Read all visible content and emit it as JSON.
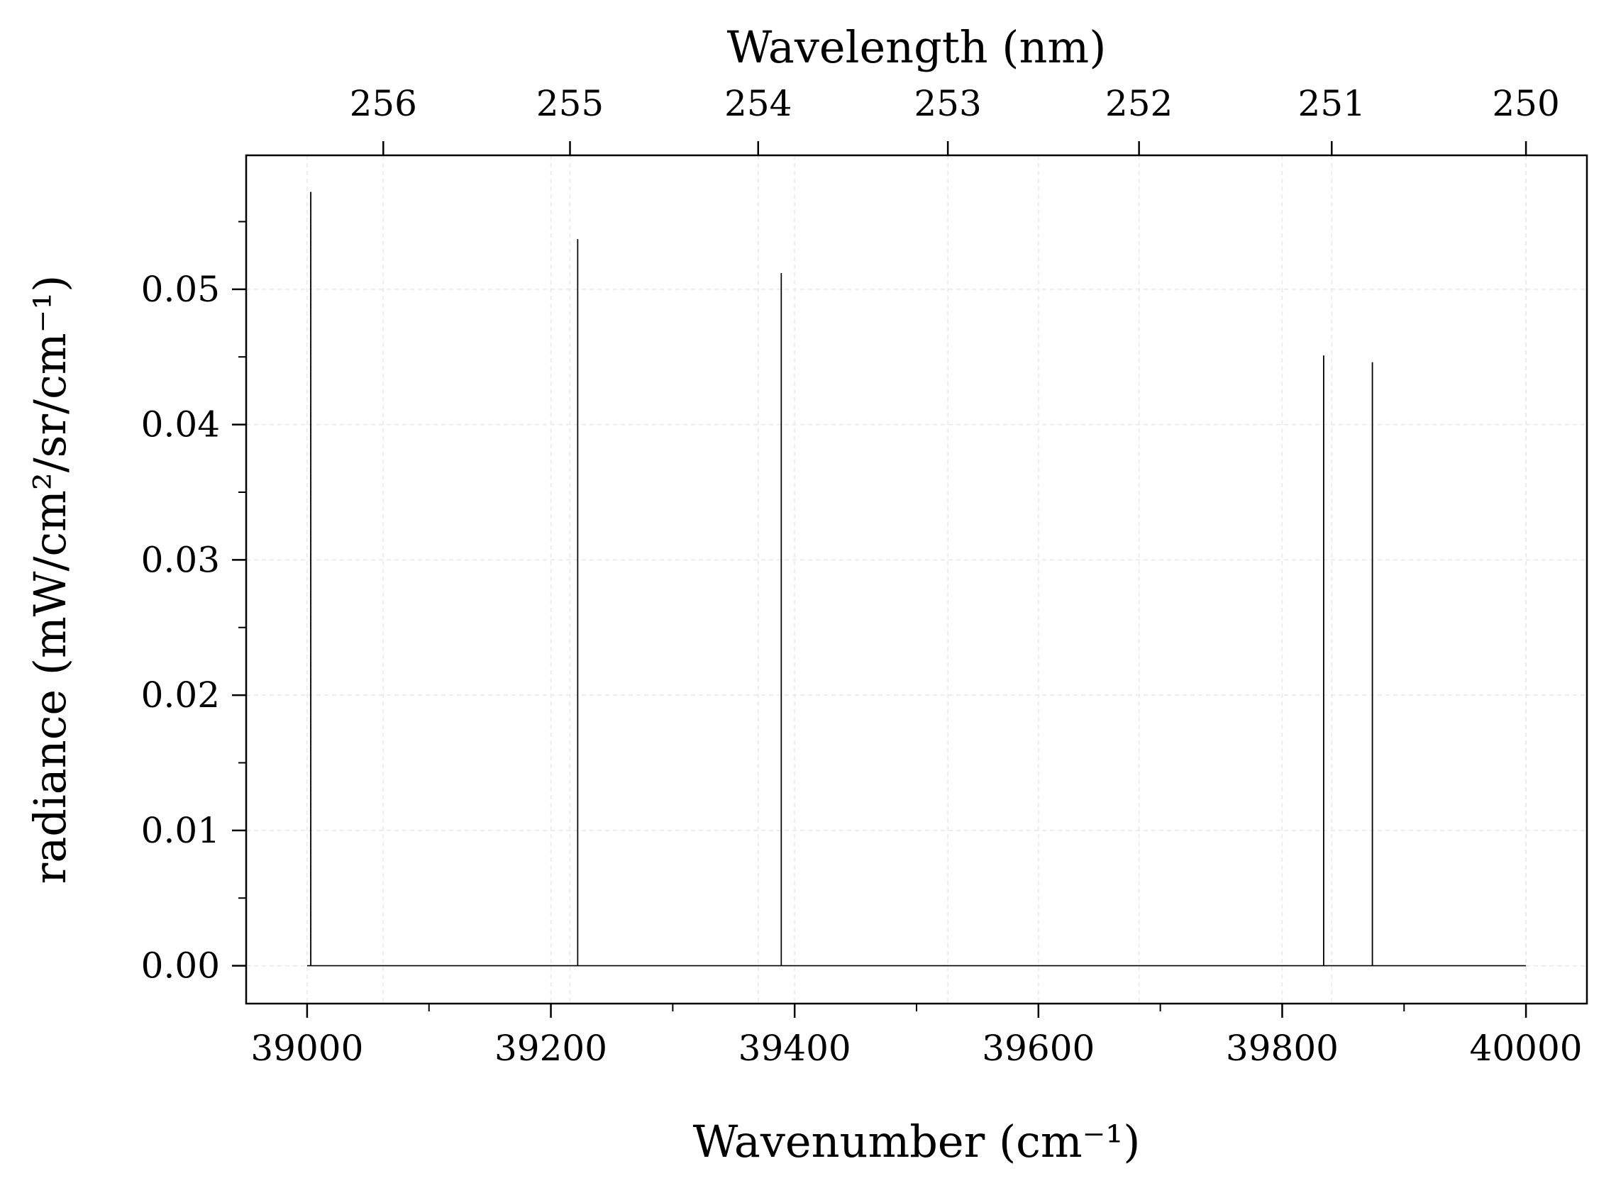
{
  "chart_data": {
    "type": "line",
    "title": "",
    "xlabel": "Wavenumber (cm⁻¹)",
    "ylabel": "radiance (mW/cm²/sr/cm⁻¹)",
    "x2label": "Wavelength (nm)",
    "xlim": [
      38950,
      40050
    ],
    "ylim": [
      -0.0028,
      0.0599
    ],
    "grid": true,
    "x_ticks": [
      39000,
      39200,
      39400,
      39600,
      39800,
      40000
    ],
    "x_tick_labels": [
      "39000",
      "39200",
      "39400",
      "39600",
      "39800",
      "40000"
    ],
    "x_minor_ticks": [
      39100,
      39300,
      39500,
      39700,
      39900
    ],
    "y_ticks": [
      0.0,
      0.01,
      0.02,
      0.03,
      0.04,
      0.05
    ],
    "y_tick_labels": [
      "0.00",
      "0.01",
      "0.02",
      "0.03",
      "0.04",
      "0.05"
    ],
    "y_minor_ticks": [
      0.005,
      0.015,
      0.025,
      0.035,
      0.045,
      0.055
    ],
    "x2_ticks_nm": [
      256,
      255,
      254,
      253,
      252,
      251,
      250
    ],
    "x2_tick_labels": [
      "256",
      "255",
      "254",
      "253",
      "252",
      "251",
      "250"
    ],
    "series": [
      {
        "baseline_range": [
          39000,
          40000
        ],
        "baseline_value": 0.0,
        "peaks": [
          {
            "x": 39003,
            "y": 0.0572
          },
          {
            "x": 39222,
            "y": 0.0537
          },
          {
            "x": 39389,
            "y": 0.0512
          },
          {
            "x": 39834,
            "y": 0.0451
          },
          {
            "x": 39874,
            "y": 0.0446
          }
        ]
      }
    ]
  }
}
